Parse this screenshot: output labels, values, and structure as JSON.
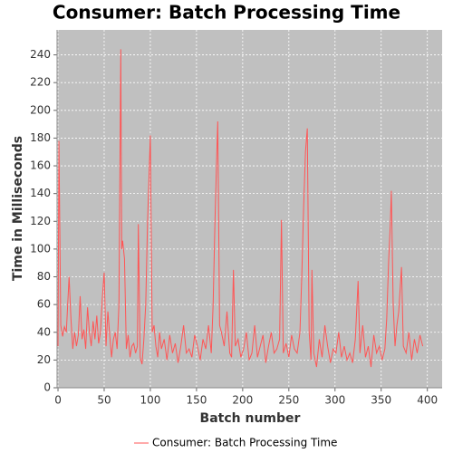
{
  "chart_data": {
    "type": "line",
    "title": "Consumer: Batch Processing Time",
    "xlabel": "Batch number",
    "ylabel": "Time in Milliseconds",
    "x": [
      0,
      1,
      3,
      5,
      7,
      9,
      12,
      14,
      16,
      18,
      20,
      22,
      24,
      26,
      28,
      30,
      32,
      34,
      36,
      38,
      40,
      42,
      44,
      46,
      48,
      50,
      52,
      54,
      56,
      58,
      60,
      62,
      64,
      66,
      68,
      69,
      70,
      72,
      74,
      76,
      78,
      80,
      82,
      84,
      86,
      87,
      89,
      91,
      93,
      95,
      97,
      100,
      102,
      104,
      106,
      108,
      110,
      112,
      115,
      118,
      121,
      124,
      127,
      130,
      133,
      136,
      139,
      142,
      145,
      148,
      151,
      154,
      157,
      160,
      163,
      166,
      168,
      170,
      172,
      173,
      175,
      177,
      180,
      183,
      186,
      188,
      190,
      192,
      195,
      198,
      201,
      204,
      207,
      210,
      213,
      216,
      219,
      222,
      225,
      228,
      231,
      234,
      237,
      240,
      242,
      244,
      247,
      250,
      253,
      256,
      259,
      262,
      264,
      266,
      268,
      270,
      272,
      274,
      275,
      277,
      280,
      283,
      286,
      289,
      292,
      295,
      298,
      301,
      304,
      307,
      310,
      313,
      316,
      319,
      322,
      325,
      327,
      330,
      333,
      336,
      339,
      342,
      345,
      348,
      351,
      354,
      356,
      358,
      360,
      361,
      363,
      365,
      367,
      369,
      372,
      374,
      377,
      380,
      383,
      386,
      389,
      392,
      395
    ],
    "series": [
      {
        "name": "Consumer: Batch Processing Time",
        "color": "#ff5555",
        "values": [
          30,
          178,
          45,
          37,
          44,
          40,
          80,
          50,
          28,
          40,
          30,
          38,
          66,
          35,
          42,
          28,
          58,
          40,
          30,
          48,
          35,
          52,
          32,
          40,
          65,
          83,
          30,
          55,
          38,
          22,
          35,
          40,
          28,
          60,
          244,
          100,
          106,
          93,
          28,
          38,
          22,
          30,
          32,
          25,
          30,
          118,
          22,
          17,
          35,
          60,
          120,
          182,
          40,
          45,
          30,
          22,
          40,
          28,
          35,
          20,
          38,
          25,
          32,
          18,
          30,
          45,
          25,
          28,
          22,
          38,
          30,
          20,
          35,
          28,
          45,
          25,
          60,
          120,
          170,
          192,
          45,
          40,
          30,
          55,
          25,
          22,
          85,
          30,
          35,
          22,
          28,
          40,
          20,
          25,
          45,
          22,
          30,
          38,
          18,
          30,
          40,
          25,
          28,
          35,
          121,
          25,
          32,
          22,
          38,
          28,
          25,
          40,
          80,
          130,
          170,
          187,
          40,
          20,
          85,
          25,
          15,
          35,
          22,
          45,
          30,
          18,
          28,
          25,
          40,
          22,
          30,
          20,
          25,
          18,
          35,
          77,
          25,
          45,
          22,
          30,
          15,
          38,
          25,
          30,
          20,
          28,
          50,
          90,
          120,
          142,
          60,
          30,
          45,
          55,
          87,
          30,
          25,
          40,
          20,
          35,
          25,
          38,
          30
        ]
      }
    ],
    "xlim": [
      -1,
      416
    ],
    "ylim": [
      0,
      258
    ],
    "xticks": [
      0,
      50,
      100,
      150,
      200,
      250,
      300,
      350,
      400
    ],
    "yticks": [
      0,
      20,
      40,
      60,
      80,
      100,
      120,
      140,
      160,
      180,
      200,
      220,
      240
    ],
    "grid": true
  }
}
